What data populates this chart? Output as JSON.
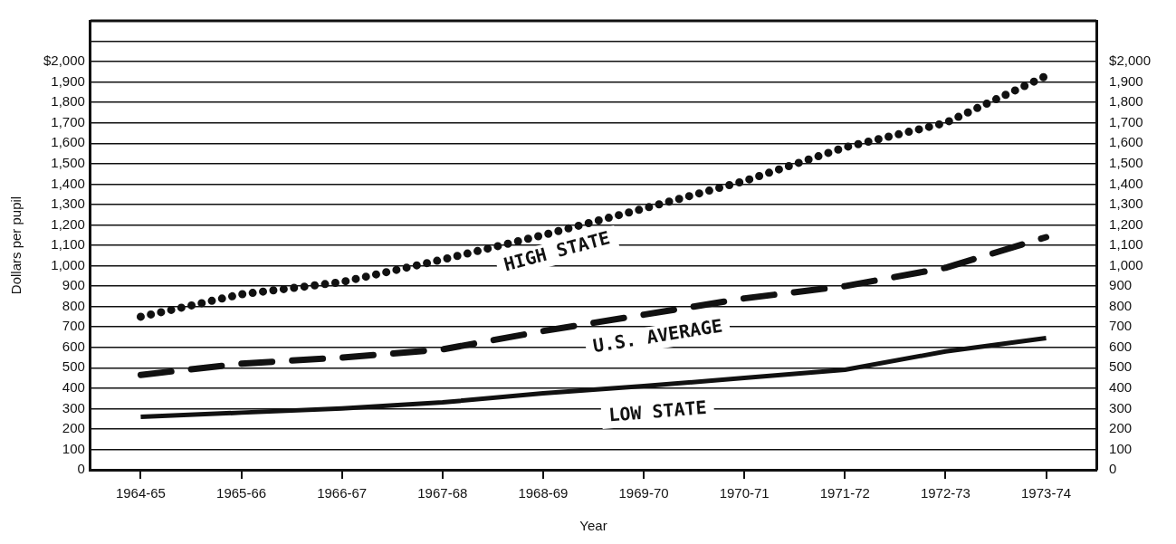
{
  "chart_data": {
    "type": "line",
    "xlabel": "Year",
    "ylabel": "Dollars per pupil",
    "categories": [
      "1964-65",
      "1965-66",
      "1966-67",
      "1967-68",
      "1968-69",
      "1969-70",
      "1970-71",
      "1971-72",
      "1972-73",
      "1973-74"
    ],
    "series": [
      {
        "name": "HIGH STATE",
        "color": "#111111",
        "line_style": "dotted",
        "values": [
          750,
          860,
          920,
          1030,
          1150,
          1280,
          1415,
          1580,
          1700,
          1930
        ]
      },
      {
        "name": "U.S. AVERAGE",
        "color": "#111111",
        "line_style": "dashed",
        "values": [
          465,
          520,
          550,
          590,
          680,
          760,
          840,
          900,
          990,
          1140
        ]
      },
      {
        "name": "LOW STATE",
        "color": "#111111",
        "line_style": "solid",
        "values": [
          260,
          280,
          300,
          330,
          375,
          410,
          450,
          490,
          580,
          645
        ]
      }
    ],
    "ylim": [
      0,
      2200
    ],
    "yticks": [
      0,
      100,
      200,
      300,
      400,
      500,
      600,
      700,
      800,
      900,
      {
        "value": 1000,
        "label": "1,000"
      },
      {
        "value": 1100,
        "label": "1,100"
      },
      {
        "value": 1200,
        "label": "1,200"
      },
      {
        "value": 1300,
        "label": "1,300"
      },
      {
        "value": 1400,
        "label": "1,400"
      },
      {
        "value": 1500,
        "label": "1,500"
      },
      {
        "value": 1600,
        "label": "1,600"
      },
      {
        "value": 1700,
        "label": "1,700"
      },
      {
        "value": 1800,
        "label": "1,800"
      },
      {
        "value": 1900,
        "label": "1,900"
      },
      {
        "value": 2000,
        "label": "$2,000"
      },
      {
        "value": 2100,
        "label": null
      },
      {
        "value": 2200,
        "label": null
      }
    ],
    "y2lim": [
      0,
      2200
    ],
    "y2ticks": [
      0,
      100,
      200,
      300,
      400,
      500,
      600,
      700,
      800,
      900,
      {
        "value": 1000,
        "label": "1,000"
      },
      {
        "value": 1100,
        "label": "1,100"
      },
      {
        "value": 1200,
        "label": "1,200"
      },
      {
        "value": 1300,
        "label": "1,300"
      },
      {
        "value": 1400,
        "label": "1,400"
      },
      {
        "value": 1500,
        "label": "1,500"
      },
      {
        "value": 1600,
        "label": "1,600"
      },
      {
        "value": 1700,
        "label": "1,700"
      },
      {
        "value": 1800,
        "label": "1,800"
      },
      {
        "value": 1900,
        "label": "1,900"
      },
      {
        "value": 2000,
        "label": "$2,000"
      },
      {
        "value": 2100,
        "label": null
      },
      {
        "value": 2200,
        "label": null
      }
    ],
    "grid": "y",
    "legend": false,
    "marker": "none"
  }
}
